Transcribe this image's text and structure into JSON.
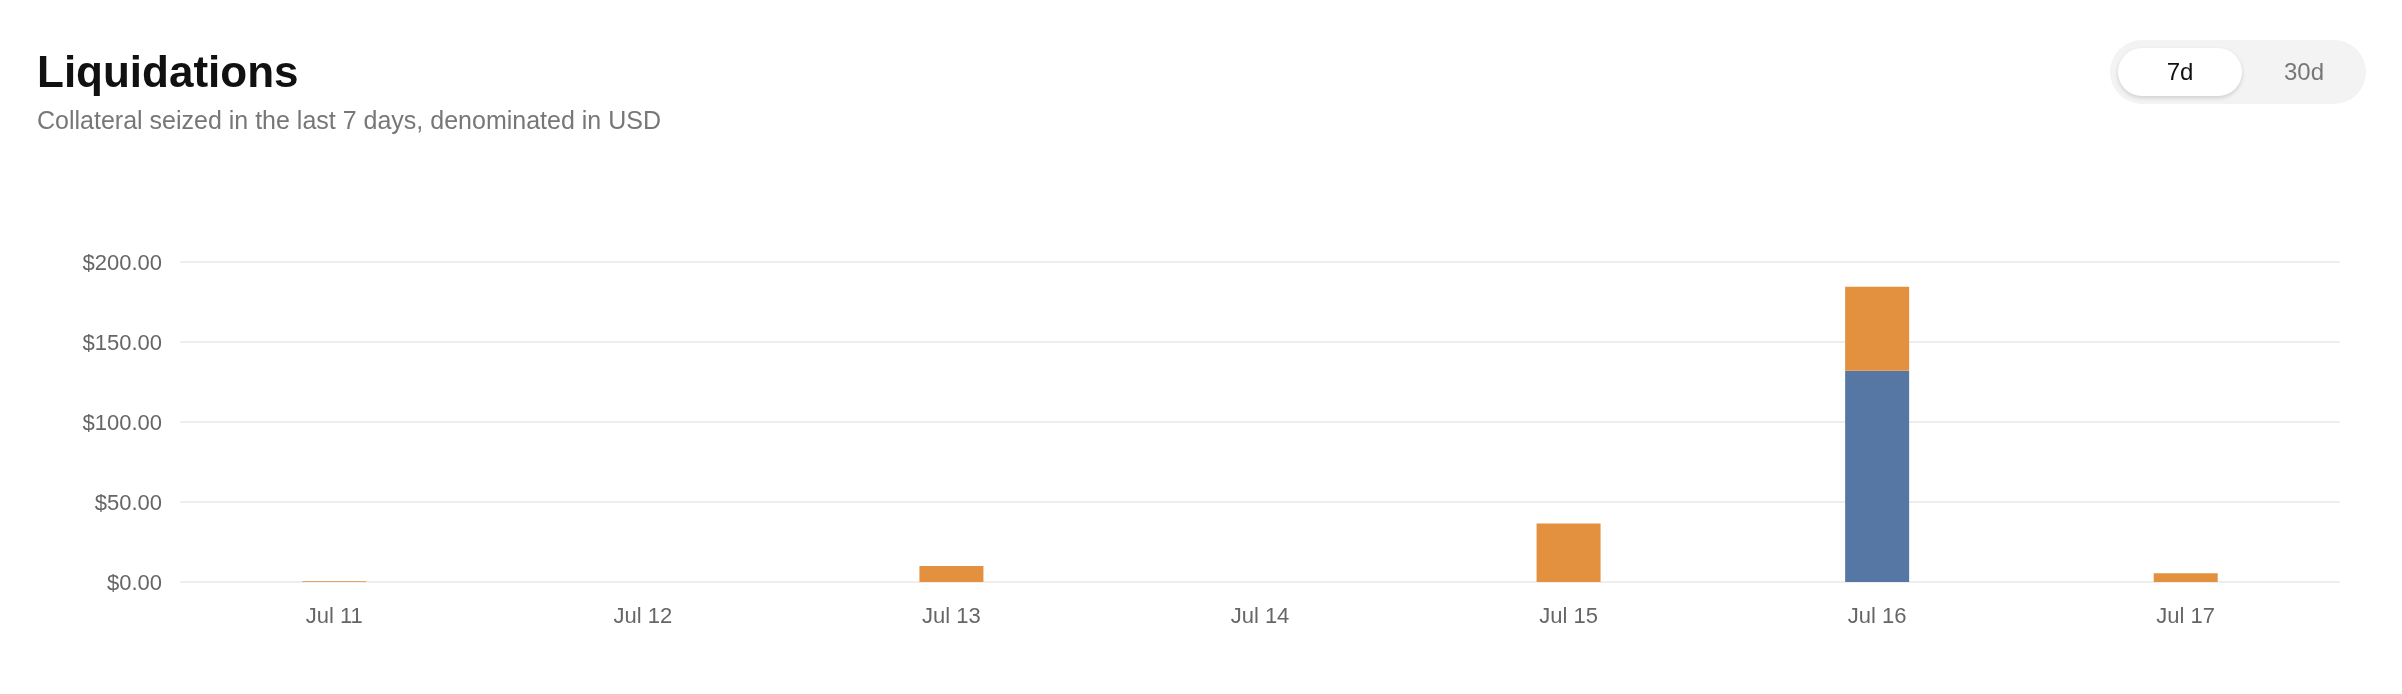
{
  "chart_data": {
    "type": "bar",
    "title": "Liquidations",
    "subtitle": "Collateral seized in the last 7 days, denominated in USD",
    "categories": [
      "Jul 11",
      "Jul 12",
      "Jul 13",
      "Jul 14",
      "Jul 15",
      "Jul 16",
      "Jul 17"
    ],
    "stacked": true,
    "series": [
      {
        "color": "#5677a4",
        "values": [
          0,
          0,
          0,
          0,
          0,
          132,
          0
        ]
      },
      {
        "color": "#e3913f",
        "values": [
          0.5,
          0,
          10,
          0,
          36.6,
          52.6,
          5.4
        ]
      }
    ],
    "ylim": [
      0,
      200
    ],
    "yticks": [
      {
        "value": 0,
        "label": "$0.00"
      },
      {
        "value": 50,
        "label": "$50.00"
      },
      {
        "value": 100,
        "label": "$100.00"
      },
      {
        "value": 150,
        "label": "$150.00"
      },
      {
        "value": 200,
        "label": "$200.00"
      }
    ],
    "grid": "y",
    "annotations": [
      "7d",
      "30d"
    ]
  }
}
